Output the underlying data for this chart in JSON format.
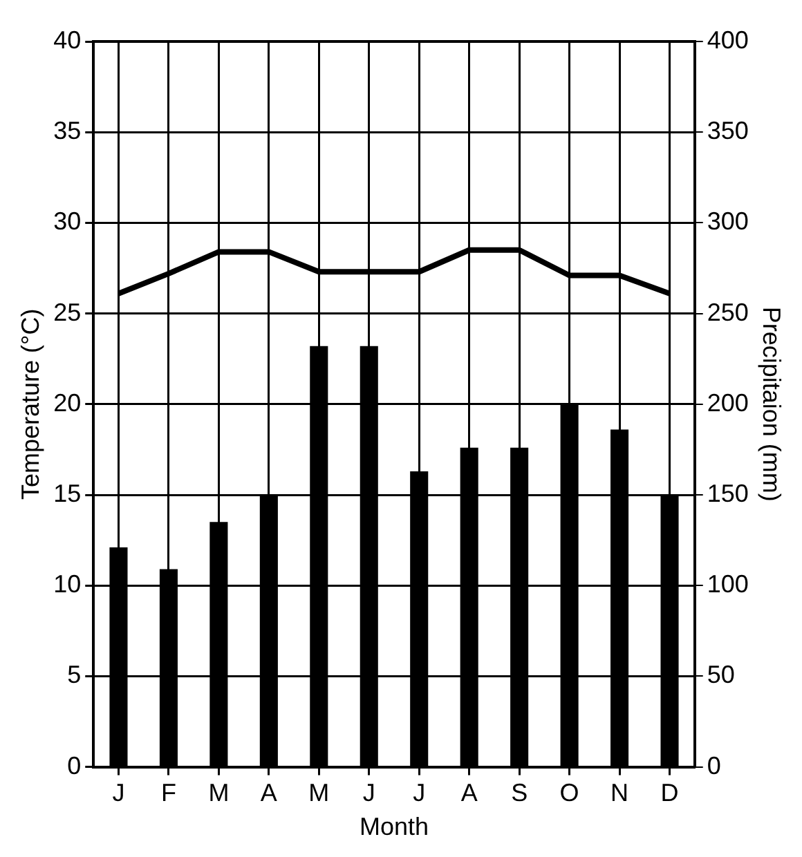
{
  "chart_data": {
    "type": "bar",
    "xlabel": "Month",
    "ylabel": "Temperature (°C)",
    "y2label": "Precipitaion (mm)",
    "categories": [
      "J",
      "F",
      "M",
      "A",
      "M",
      "J",
      "J",
      "A",
      "S",
      "O",
      "N",
      "D"
    ],
    "series": [
      {
        "type": "line",
        "axis": "y",
        "color": "#000000",
        "values": [
          26.1,
          27.2,
          28.4,
          28.4,
          27.3,
          27.3,
          27.3,
          28.5,
          28.5,
          27.1,
          27.1,
          26.1
        ]
      },
      {
        "axis": "y2",
        "color": "#000000",
        "values": [
          121,
          109,
          135,
          150,
          232,
          232,
          163,
          176,
          176,
          200,
          186,
          150
        ]
      }
    ],
    "ylim": [
      0,
      40
    ],
    "yticks": [
      0,
      5,
      10,
      15,
      20,
      25,
      30,
      35,
      40
    ],
    "y2lim": [
      0,
      400
    ],
    "y2ticks": [
      0,
      50,
      100,
      150,
      200,
      250,
      300,
      350,
      400
    ],
    "grid": true,
    "legend": false,
    "marker": "none",
    "line_style": "solid"
  }
}
